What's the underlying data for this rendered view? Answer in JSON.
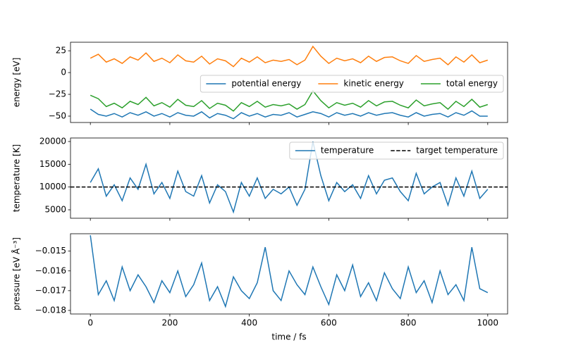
{
  "chart_data": [
    {
      "type": "line",
      "ylabel": "energy [eV]",
      "x": [
        0,
        20,
        40,
        60,
        80,
        100,
        120,
        140,
        160,
        180,
        200,
        220,
        240,
        260,
        280,
        300,
        320,
        340,
        360,
        380,
        400,
        420,
        440,
        460,
        480,
        500,
        520,
        540,
        560,
        580,
        600,
        620,
        640,
        660,
        680,
        700,
        720,
        740,
        760,
        780,
        800,
        820,
        840,
        860,
        880,
        900,
        920,
        940,
        960,
        980,
        1000
      ],
      "xlim": [
        -50,
        1050
      ],
      "xticks": [
        0,
        200,
        400,
        600,
        800,
        1000
      ],
      "ylim": [
        -57.3,
        34.8
      ],
      "yticks": [
        {
          "value": -50,
          "label": "−50"
        },
        {
          "value": -25,
          "label": "−25"
        },
        0,
        25
      ],
      "legend": "center right",
      "legend_ncol": 3,
      "series": [
        {
          "name": "potential energy",
          "color": "#1f77b4",
          "values": [
            -42,
            -48,
            -50,
            -47,
            -51,
            -46,
            -49,
            -45,
            -50,
            -47,
            -51,
            -46,
            -49,
            -50,
            -45,
            -52,
            -47,
            -49,
            -53,
            -46,
            -50,
            -47,
            -51,
            -48,
            -49,
            -46,
            -51,
            -48,
            -45,
            -47,
            -51,
            -46,
            -49,
            -47,
            -50,
            -46,
            -49,
            -47,
            -46,
            -49,
            -51,
            -46,
            -50,
            -48,
            -47,
            -51,
            -46,
            -49,
            -44,
            -50,
            -50
          ]
        },
        {
          "name": "kinetic energy",
          "color": "#ff7f0e",
          "values": [
            16.5,
            21,
            12,
            15.8,
            10.5,
            18,
            14.3,
            22.5,
            12.8,
            16.5,
            11.3,
            20.3,
            13.5,
            12,
            18.8,
            9.8,
            15.8,
            13.5,
            6.8,
            16.5,
            12,
            18,
            11.3,
            14.3,
            12.8,
            15,
            9,
            14.3,
            30,
            18.8,
            10.5,
            16.5,
            13.5,
            15.8,
            11.3,
            18.8,
            12.8,
            17.3,
            18,
            13.5,
            10.5,
            19.5,
            12.8,
            15,
            16.5,
            9,
            18,
            12,
            20.3,
            11.3,
            14.3
          ]
        },
        {
          "name": "total energy",
          "color": "#2ca02c",
          "values": [
            -26,
            -30,
            -39,
            -35.2,
            -40.5,
            -33,
            -36.7,
            -28.5,
            -38.2,
            -34.5,
            -39.7,
            -30.7,
            -37.5,
            -39,
            -32.2,
            -41.2,
            -35.2,
            -37.5,
            -44.2,
            -34.5,
            -39,
            -33,
            -39.7,
            -36.7,
            -38.2,
            -36,
            -42,
            -36.7,
            -21,
            -32.2,
            -40.5,
            -34.5,
            -37.5,
            -35.2,
            -39.7,
            -32.2,
            -38.2,
            -33.7,
            -33,
            -37.5,
            -40.5,
            -31.5,
            -38.2,
            -36,
            -34.5,
            -42,
            -33,
            -39,
            -30.7,
            -39.7,
            -36.7
          ]
        }
      ]
    },
    {
      "type": "line",
      "ylabel": "temperature [K]",
      "x": [
        0,
        20,
        40,
        60,
        80,
        100,
        120,
        140,
        160,
        180,
        200,
        220,
        240,
        260,
        280,
        300,
        320,
        340,
        360,
        380,
        400,
        420,
        440,
        460,
        480,
        500,
        520,
        540,
        560,
        580,
        600,
        620,
        640,
        660,
        680,
        700,
        720,
        740,
        760,
        780,
        800,
        820,
        840,
        860,
        880,
        900,
        920,
        940,
        960,
        980,
        1000
      ],
      "xlim": [
        -50,
        1050
      ],
      "xticks": [
        0,
        200,
        400,
        600,
        800,
        1000
      ],
      "ylim": [
        3145,
        20773
      ],
      "yticks": [
        5000,
        10000,
        15000,
        20000
      ],
      "legend": "upper right",
      "legend_ncol": 2,
      "series": [
        {
          "name": "temperature",
          "color": "#1f77b4",
          "values": [
            11000,
            14000,
            8000,
            10500,
            7000,
            12000,
            9500,
            15000,
            8500,
            11000,
            7500,
            13500,
            9000,
            8000,
            12500,
            6500,
            10500,
            9000,
            4500,
            11000,
            8000,
            12000,
            7500,
            9500,
            8500,
            10000,
            6000,
            9500,
            20000,
            12500,
            7000,
            11000,
            9000,
            10500,
            7500,
            12500,
            8500,
            11500,
            12000,
            9000,
            7000,
            13000,
            8500,
            10000,
            11000,
            6000,
            12000,
            8000,
            13500,
            7500,
            9500
          ]
        }
      ],
      "hlines": [
        {
          "name": "target temperature",
          "value": 10000,
          "color": "#000000",
          "style": "dashed"
        }
      ]
    },
    {
      "type": "line",
      "ylabel": "pressure [eV Å⁻³]",
      "xlabel": "time / fs",
      "x": [
        0,
        20,
        40,
        60,
        80,
        100,
        120,
        140,
        160,
        180,
        200,
        220,
        240,
        260,
        280,
        300,
        320,
        340,
        360,
        380,
        400,
        420,
        440,
        460,
        480,
        500,
        520,
        540,
        560,
        580,
        600,
        620,
        640,
        660,
        680,
        700,
        720,
        740,
        760,
        780,
        800,
        820,
        840,
        860,
        880,
        900,
        920,
        940,
        960,
        980,
        1000
      ],
      "xlim": [
        -50,
        1050
      ],
      "xticks": [
        0,
        200,
        400,
        600,
        800,
        1000
      ],
      "ylim": [
        -0.01818,
        -0.01412
      ],
      "yticks": [
        {
          "value": -0.018,
          "label": "−0.018"
        },
        {
          "value": -0.017,
          "label": "−0.017"
        },
        {
          "value": -0.016,
          "label": "−0.016"
        },
        {
          "value": -0.015,
          "label": "−0.015"
        }
      ],
      "series": [
        {
          "name": "pressure",
          "color": "#1f77b4",
          "values": [
            -0.0142,
            -0.0172,
            -0.0165,
            -0.0175,
            -0.0158,
            -0.017,
            -0.0162,
            -0.0168,
            -0.0176,
            -0.0165,
            -0.0171,
            -0.016,
            -0.0173,
            -0.0167,
            -0.0156,
            -0.0175,
            -0.0168,
            -0.0178,
            -0.0163,
            -0.017,
            -0.0174,
            -0.0166,
            -0.0148,
            -0.017,
            -0.0175,
            -0.016,
            -0.0167,
            -0.0172,
            -0.0158,
            -0.0168,
            -0.0177,
            -0.0162,
            -0.017,
            -0.0157,
            -0.0173,
            -0.0166,
            -0.0175,
            -0.0161,
            -0.0169,
            -0.0174,
            -0.0158,
            -0.0171,
            -0.0165,
            -0.0176,
            -0.016,
            -0.0172,
            -0.0167,
            -0.0175,
            -0.0148,
            -0.0169,
            -0.0171
          ]
        }
      ]
    }
  ]
}
